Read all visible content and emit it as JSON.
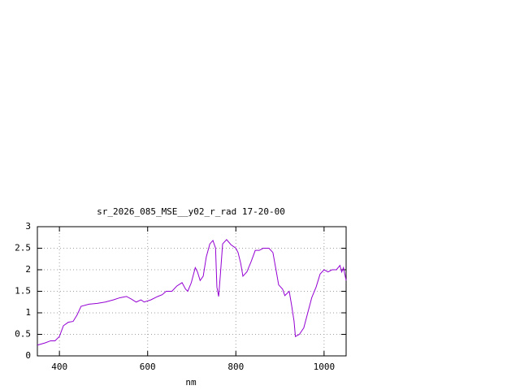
{
  "chart_data": {
    "type": "line",
    "title": "sr_2026_085_MSE__y02_r_rad 17-20-00",
    "x_label": "nm",
    "xlim": [
      350,
      1050
    ],
    "xticks": [
      400,
      600,
      800,
      1000
    ],
    "ylim": [
      0,
      3
    ],
    "yticks": [
      0,
      0.5,
      1,
      1.5,
      2,
      2.5,
      3
    ],
    "grid": true,
    "series": [
      {
        "color": "#9400d3",
        "x": [
          350,
          367,
          380,
          390,
          400,
          409,
          420,
          431,
          440,
          449,
          467,
          486,
          504,
          522,
          537,
          552,
          563,
          574,
          585,
          592,
          607,
          623,
          633,
          642,
          655,
          666,
          678,
          686,
          691,
          699,
          708,
          713,
          719,
          726,
          733,
          741,
          748,
          754,
          757,
          761,
          765,
          770,
          779,
          789,
          800,
          805,
          811,
          816,
          825,
          835,
          844,
          853,
          862,
          875,
          884,
          891,
          897,
          906,
          911,
          921,
          926,
          932,
          935,
          944,
          954,
          963,
          972,
          982,
          991,
          1000,
          1009,
          1018,
          1028,
          1036,
          1040,
          1044,
          1050
        ],
        "values": [
          0.25,
          0.3,
          0.35,
          0.35,
          0.45,
          0.7,
          0.78,
          0.8,
          0.95,
          1.15,
          1.2,
          1.22,
          1.25,
          1.3,
          1.35,
          1.38,
          1.32,
          1.25,
          1.3,
          1.25,
          1.3,
          1.38,
          1.42,
          1.5,
          1.5,
          1.62,
          1.7,
          1.55,
          1.5,
          1.7,
          2.05,
          1.95,
          1.75,
          1.85,
          2.3,
          2.6,
          2.68,
          2.5,
          1.6,
          1.38,
          1.9,
          2.6,
          2.7,
          2.58,
          2.5,
          2.4,
          2.15,
          1.85,
          1.95,
          2.2,
          2.45,
          2.45,
          2.5,
          2.5,
          2.4,
          2.0,
          1.65,
          1.55,
          1.4,
          1.5,
          1.2,
          0.8,
          0.45,
          0.5,
          0.65,
          1.0,
          1.35,
          1.6,
          1.9,
          2.0,
          1.95,
          2.0,
          2.0,
          2.1,
          1.95,
          2.05,
          1.75
        ]
      }
    ]
  }
}
